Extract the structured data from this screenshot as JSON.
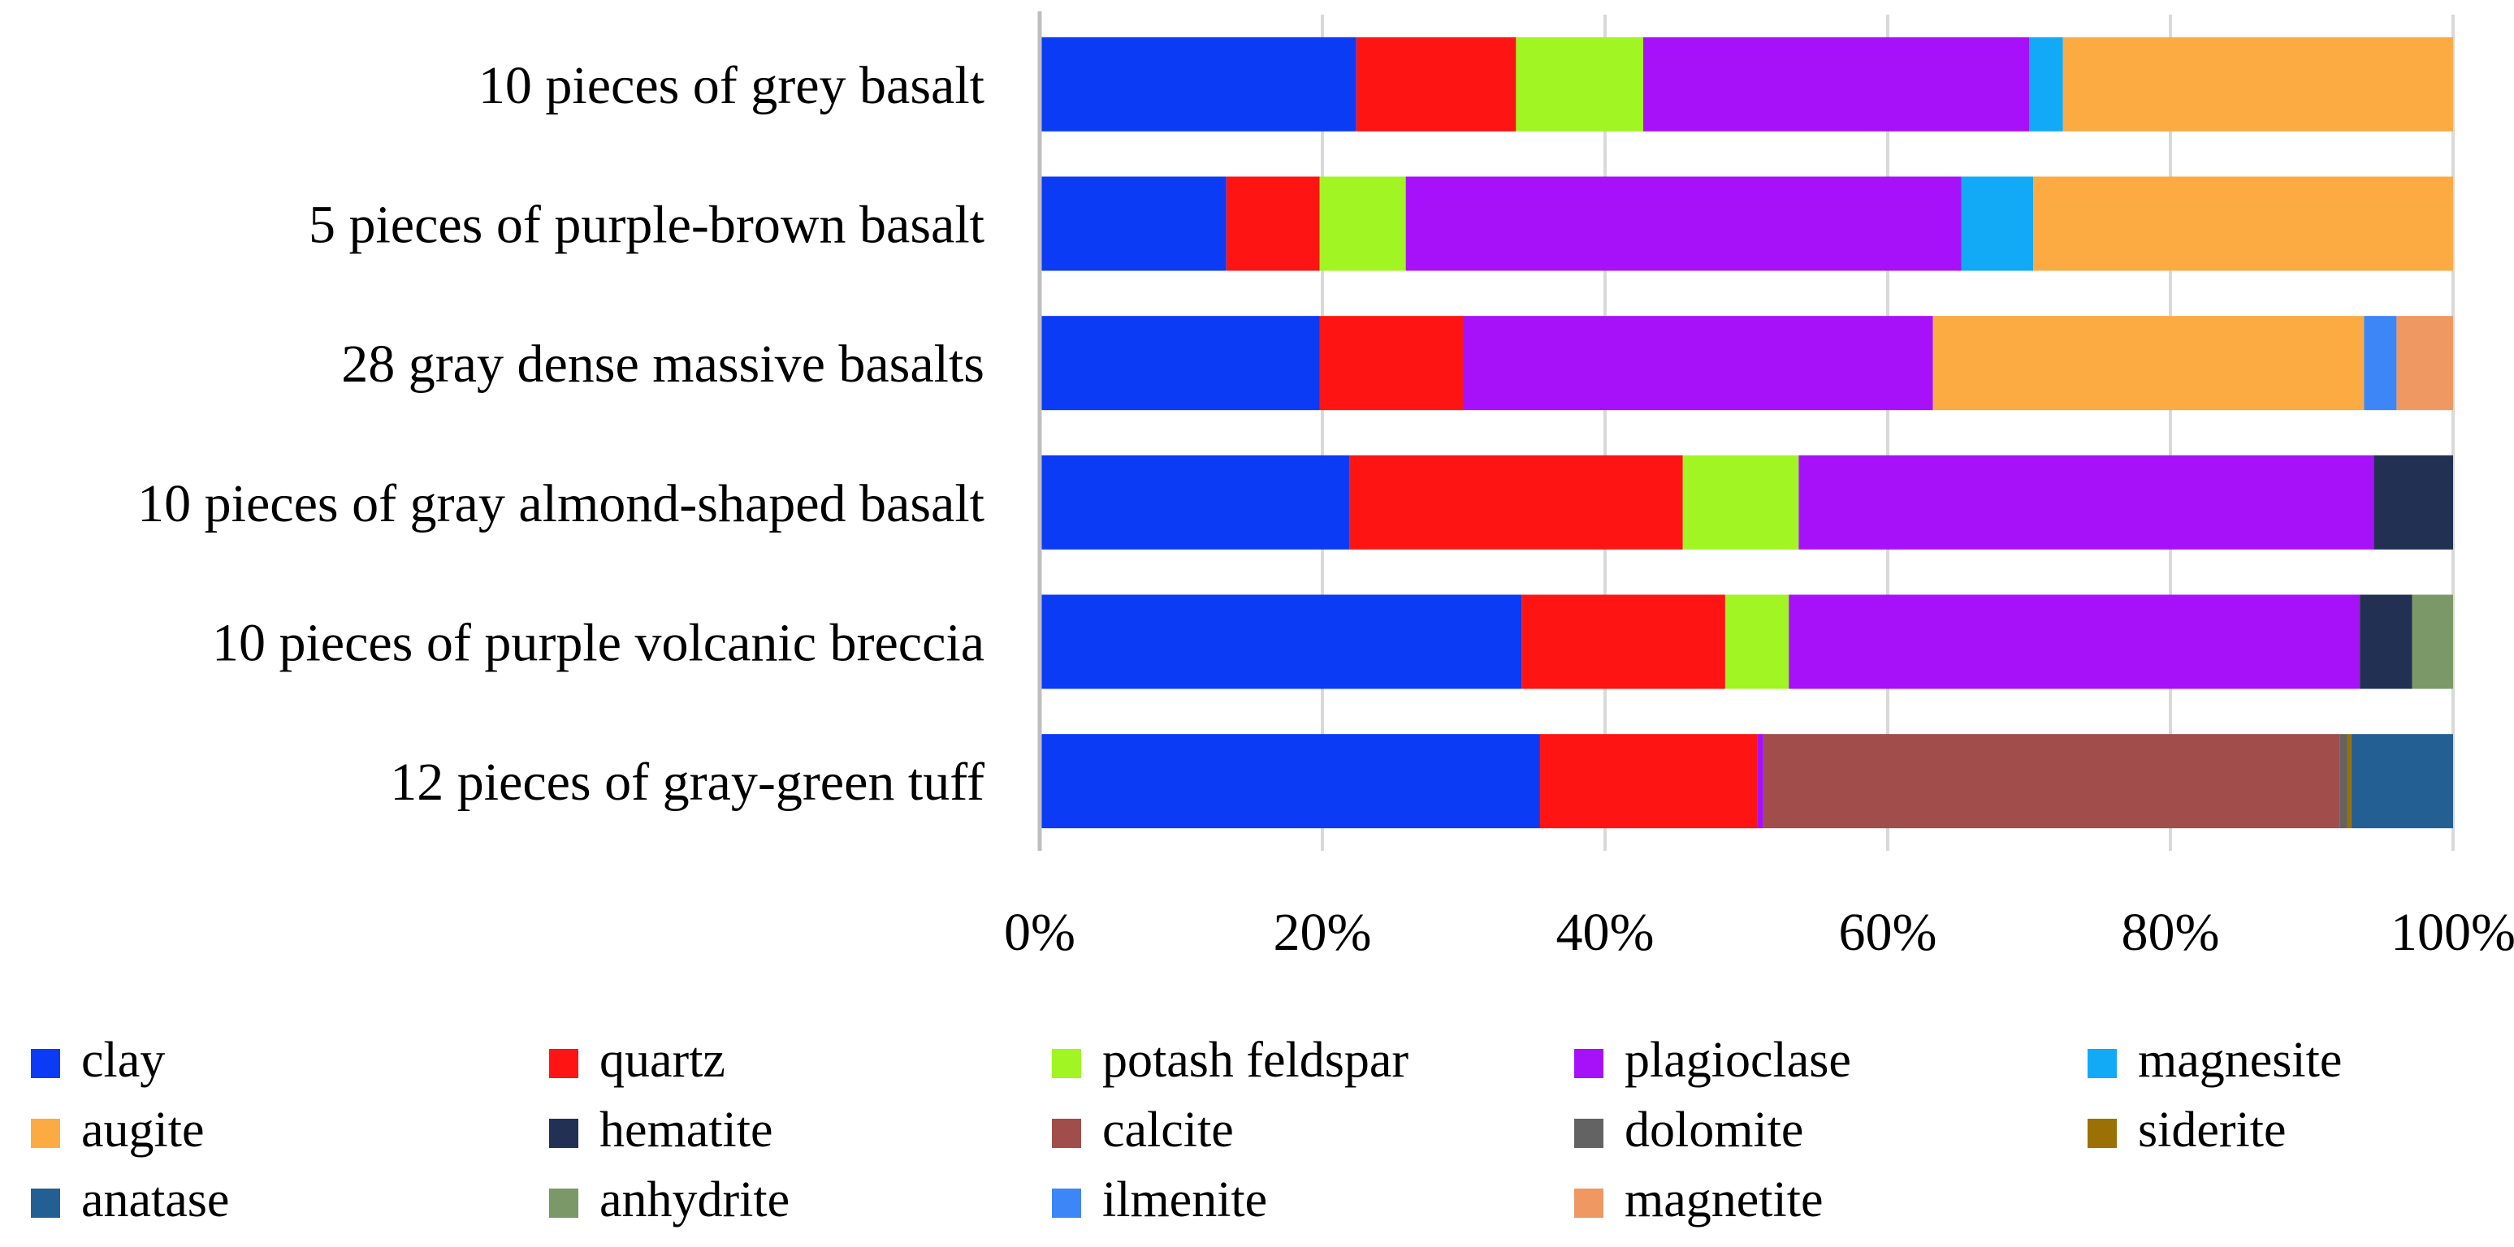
{
  "chart_data": {
    "type": "bar",
    "orientation": "horizontal",
    "stacking": "percent",
    "title": "",
    "xlabel": "",
    "ylabel": "",
    "xlim": [
      0,
      100
    ],
    "x_ticks": [
      "0%",
      "20%",
      "40%",
      "60%",
      "80%",
      "100%"
    ],
    "grid": true,
    "legend_position": "bottom",
    "categories": [
      "10 pieces of grey basalt",
      "5 pieces of purple-brown basalt",
      "28 gray dense massive basalts",
      "10 pieces of gray almond-shaped basalt",
      "10 pieces of purple volcanic breccia",
      "12 pieces of gray-green tuff"
    ],
    "series": [
      {
        "name": "clay",
        "color": "#0B3BF5",
        "values": [
          22.4,
          13.2,
          19.8,
          21.9,
          34.1,
          35.4
        ]
      },
      {
        "name": "quartz",
        "color": "#FF1414",
        "values": [
          11.3,
          6.6,
          10.2,
          23.6,
          14.4,
          15.4
        ]
      },
      {
        "name": "potash feldspar",
        "color": "#A0F522",
        "values": [
          9.0,
          6.1,
          0,
          8.2,
          4.5,
          0
        ]
      },
      {
        "name": "plagioclase",
        "color": "#A711FA",
        "values": [
          27.3,
          39.3,
          33.2,
          40.7,
          40.4,
          0.4
        ]
      },
      {
        "name": "magnesite",
        "color": "#12AAF7",
        "values": [
          2.4,
          5.1,
          0,
          0,
          0,
          0
        ]
      },
      {
        "name": "augite",
        "color": "#FCAA42",
        "values": [
          27.6,
          29.7,
          30.5,
          0,
          0,
          0
        ]
      },
      {
        "name": "hematite",
        "color": "#223153",
        "values": [
          0,
          0,
          0,
          5.6,
          3.7,
          0
        ]
      },
      {
        "name": "calcite",
        "color": "#A04D4B",
        "values": [
          0,
          0,
          0,
          0,
          0,
          40.8
        ]
      },
      {
        "name": "dolomite",
        "color": "#636363",
        "values": [
          0,
          0,
          0,
          0,
          0,
          0.5
        ]
      },
      {
        "name": "siderite",
        "color": "#9B7004",
        "values": [
          0,
          0,
          0,
          0,
          0,
          0.3
        ]
      },
      {
        "name": "anatase",
        "color": "#245F94",
        "values": [
          0,
          0,
          0,
          0,
          0,
          7.2
        ]
      },
      {
        "name": "anhydrite",
        "color": "#7B9868",
        "values": [
          0,
          0,
          0,
          0,
          2.9,
          0
        ]
      },
      {
        "name": "ilmenite",
        "color": "#3D86F7",
        "values": [
          0,
          0,
          2.3,
          0,
          0,
          0
        ]
      },
      {
        "name": "magnetite",
        "color": "#F09862",
        "values": [
          0,
          0,
          4.0,
          0,
          0,
          0
        ]
      }
    ]
  }
}
